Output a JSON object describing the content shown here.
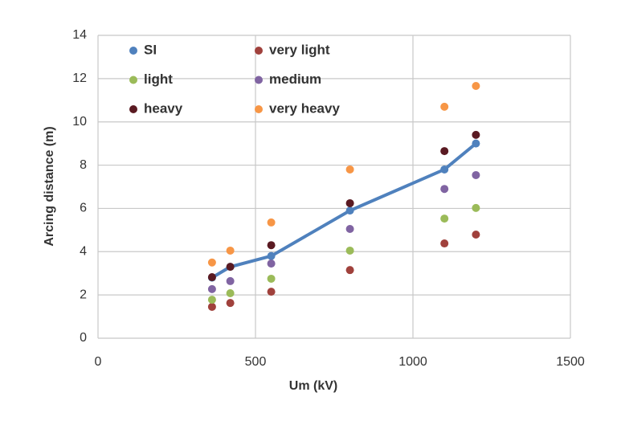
{
  "chart_data": {
    "type": "scatter",
    "x_label": "Um (kV)",
    "y_label": "Arcing distance (m)",
    "x": [
      362,
      420,
      550,
      800,
      1100,
      1200
    ],
    "series": [
      {
        "name": "SI",
        "color": "#4f81bd",
        "style": "line",
        "values": [
          2.8,
          3.3,
          3.8,
          5.9,
          7.8,
          9.0
        ]
      },
      {
        "name": "very light",
        "color": "#a0413c",
        "style": "markers",
        "values": [
          1.45,
          1.63,
          2.15,
          3.15,
          4.38,
          4.79
        ]
      },
      {
        "name": "light",
        "color": "#9bbb59",
        "style": "markers",
        "values": [
          1.78,
          2.08,
          2.75,
          4.05,
          5.53,
          6.02
        ]
      },
      {
        "name": "medium",
        "color": "#8064a2",
        "style": "markers",
        "values": [
          2.27,
          2.64,
          3.45,
          5.05,
          6.9,
          7.54
        ]
      },
      {
        "name": "heavy",
        "color": "#5a1a22",
        "style": "markers",
        "values": [
          2.82,
          3.3,
          4.3,
          6.24,
          8.65,
          9.4
        ]
      },
      {
        "name": "very heavy",
        "color": "#f79646",
        "style": "markers",
        "values": [
          3.5,
          4.05,
          5.35,
          7.8,
          10.7,
          11.66
        ]
      }
    ],
    "xlim": [
      0,
      1500
    ],
    "xticks": [
      0,
      500,
      1000,
      1500
    ],
    "ylim": [
      0,
      14
    ],
    "yticks": [
      0,
      2,
      4,
      6,
      8,
      10,
      12,
      14
    ],
    "grid": true
  }
}
